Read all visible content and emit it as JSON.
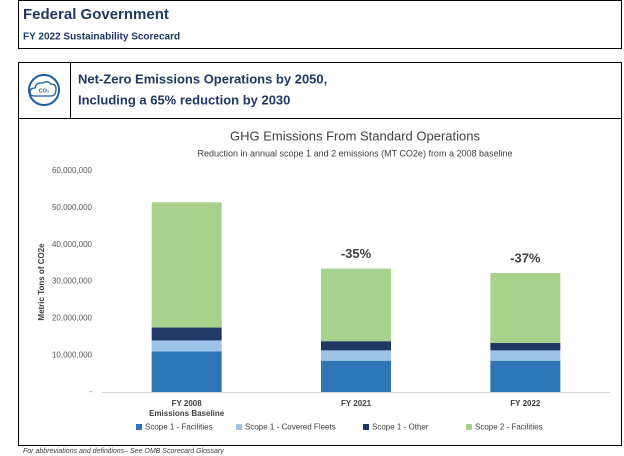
{
  "header": {
    "title": "Federal Government",
    "subtitle": "FY 2022 Sustainability Scorecard"
  },
  "section": {
    "icon_text": "CO₂",
    "title_lines": [
      "Net-Zero Emissions Operations by 2050,",
      "Including a 65% reduction by 2030"
    ]
  },
  "chart_data": {
    "type": "stacked_bar",
    "title": "GHG Emissions From Standard Operations",
    "subtitle": "Reduction in annual scope 1 and 2 emissions (MT CO2e) from a 2008 baseline",
    "ylabel": "Metric Tons of CO2e",
    "categories": [
      "FY 2008",
      "FY 2021",
      "FY 2022"
    ],
    "baseline_label": "Emissions Baseline",
    "annotations": [
      null,
      "-35%",
      "-37%"
    ],
    "series": [
      {
        "name": "Scope 1 - Facilities",
        "color": "#2e75b6",
        "values": [
          11000000,
          8500000,
          8500000
        ]
      },
      {
        "name": "Scope 1 - Covered Fleets",
        "color": "#9dc3e6",
        "values": [
          3000000,
          2800000,
          2800000
        ]
      },
      {
        "name": "Scope 1 - Other",
        "color": "#1f3864",
        "values": [
          3500000,
          2500000,
          2000000
        ]
      },
      {
        "name": "Scope 2 - Facilities",
        "color": "#a9d18e",
        "values": [
          34000000,
          19700000,
          19000000
        ]
      }
    ],
    "ylim": [
      0,
      60000000
    ],
    "yticks": [
      {
        "value": 0,
        "label": "-"
      },
      {
        "value": 10000000,
        "label": "10,000,000"
      },
      {
        "value": 20000000,
        "label": "20,000,000"
      },
      {
        "value": 30000000,
        "label": "30,000,000"
      },
      {
        "value": 40000000,
        "label": "40,000,000"
      },
      {
        "value": 50000000,
        "label": "50,000,000"
      },
      {
        "value": 60000000,
        "label": "60,000,000"
      }
    ],
    "grid": false,
    "legend": "bottom"
  },
  "footer": "For abbreviations and definitions– See OMB Scorecard Glossary"
}
